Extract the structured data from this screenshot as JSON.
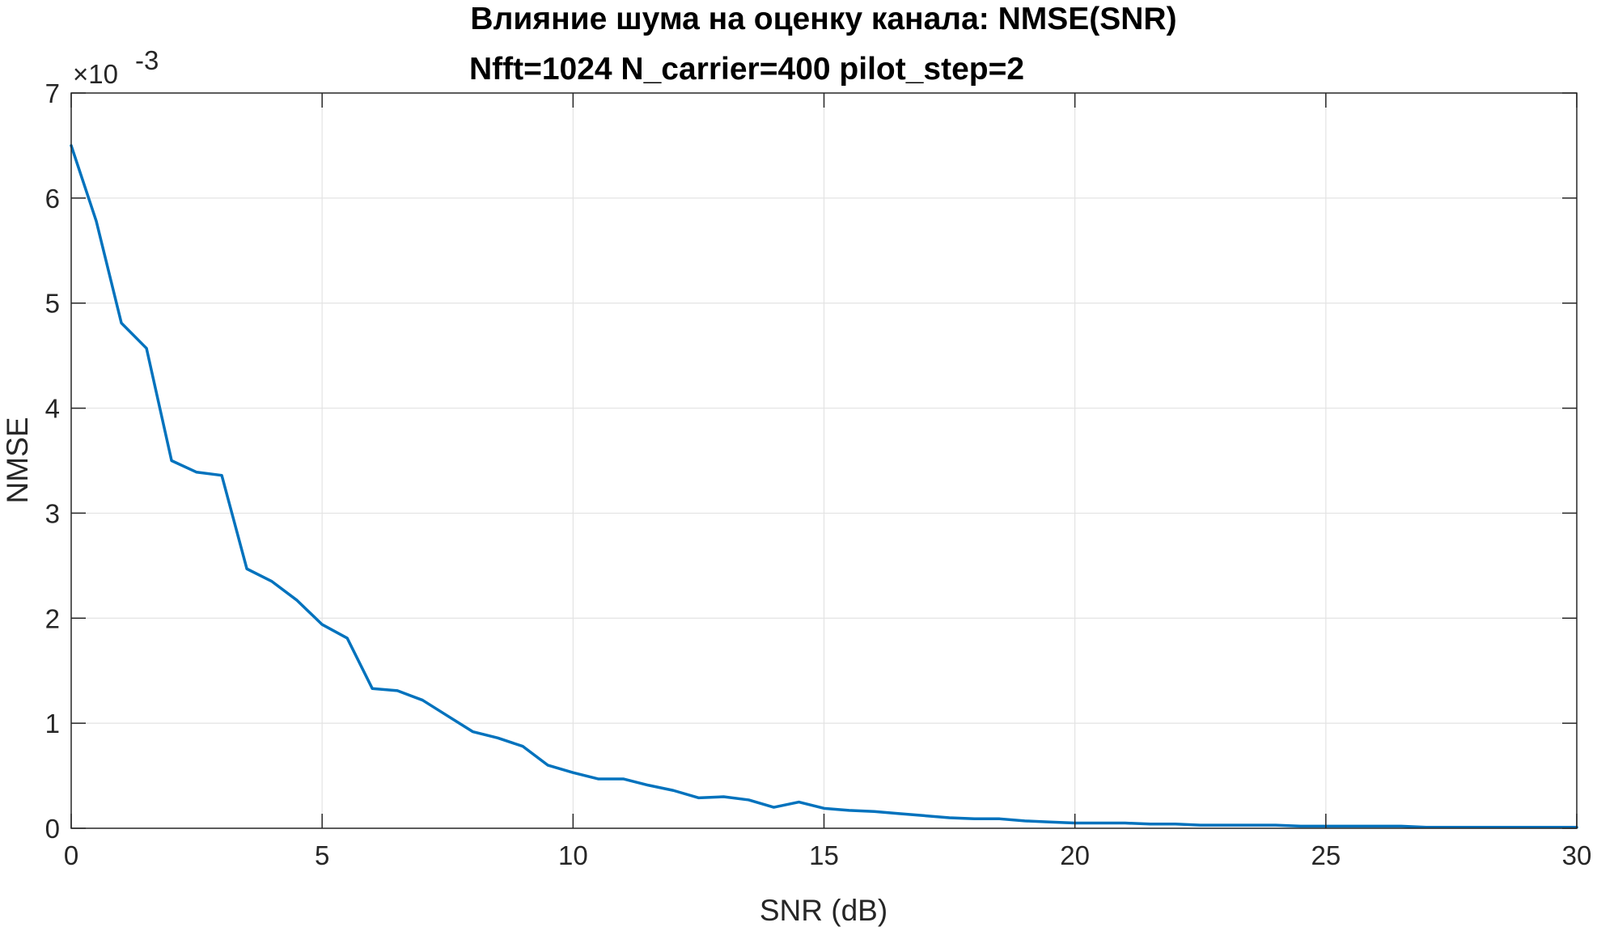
{
  "chart_data": {
    "type": "line",
    "title": "Влияние шума на оценку канала: NMSE(SNR)",
    "subtitle": "Nfft=1024 N_carrier=400 pilot_step=2",
    "xlabel": "SNR (dB)",
    "ylabel": "NMSE",
    "xlim": [
      0,
      30
    ],
    "ylim": [
      0,
      7
    ],
    "y_scale_factor": "×10",
    "y_scale_exponent": "-3",
    "xticks": [
      "0",
      "5",
      "10",
      "15",
      "20",
      "25",
      "30"
    ],
    "yticks": [
      "0",
      "1",
      "2",
      "3",
      "4",
      "5",
      "6",
      "7"
    ],
    "grid": true,
    "line_color": "#0072BD",
    "series": [
      {
        "x": [
          0,
          0.5,
          1,
          1.5,
          2,
          2.5,
          3,
          3.5,
          4,
          4.5,
          5,
          5.5,
          6,
          6.5,
          7,
          7.5,
          8,
          8.5,
          9,
          9.5,
          10,
          10.5,
          11,
          11.5,
          12,
          12.5,
          13,
          13.5,
          14,
          14.5,
          15,
          15.5,
          16,
          16.5,
          17,
          17.5,
          18,
          18.5,
          19,
          19.5,
          20,
          20.5,
          21,
          21.5,
          22,
          22.5,
          23,
          23.5,
          24,
          24.5,
          25,
          25.5,
          26,
          26.5,
          27,
          27.5,
          28,
          28.5,
          29,
          29.5,
          30
        ],
        "y": [
          6.5,
          5.78,
          4.81,
          4.57,
          3.5,
          3.39,
          3.36,
          2.47,
          2.35,
          2.17,
          1.94,
          1.81,
          1.33,
          1.31,
          1.22,
          1.07,
          0.92,
          0.86,
          0.78,
          0.6,
          0.53,
          0.47,
          0.47,
          0.41,
          0.36,
          0.29,
          0.3,
          0.27,
          0.2,
          0.25,
          0.19,
          0.17,
          0.16,
          0.14,
          0.12,
          0.1,
          0.09,
          0.09,
          0.07,
          0.06,
          0.05,
          0.05,
          0.05,
          0.04,
          0.04,
          0.03,
          0.03,
          0.03,
          0.03,
          0.02,
          0.02,
          0.02,
          0.02,
          0.02,
          0.01,
          0.01,
          0.01,
          0.01,
          0.01,
          0.01,
          0.01
        ]
      }
    ]
  }
}
